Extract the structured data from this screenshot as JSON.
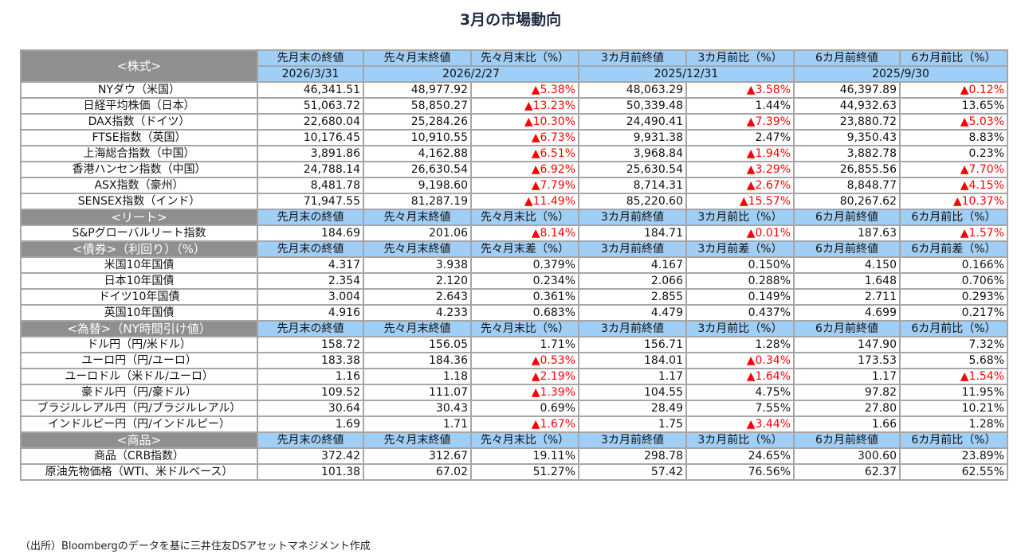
{
  "title": "3月の市場動向",
  "stocks": {
    "label": "<株式>",
    "headers": [
      "先月末の終値",
      "先々月末終値",
      "先々月末比（%）",
      "3カ月前終値",
      "3カ月前比（%）",
      "6カ月前終値",
      "6カ月前比（%）"
    ],
    "dates": [
      "2026/3/31",
      "2026/2/27",
      "2025/12/31",
      "2025/9/30"
    ],
    "rows": [
      {
        "name": "NYダウ（米国）",
        "values": [
          "46,341.51",
          "48,977.92",
          "▲5.38%",
          "48,063.29",
          "▲3.58%",
          "46,397.89",
          "▲0.12%"
        ]
      },
      {
        "name": "日経平均株価（日本）",
        "values": [
          "51,063.72",
          "58,850.27",
          "▲13.23%",
          "50,339.48",
          "1.44%",
          "44,932.63",
          "13.65%"
        ]
      },
      {
        "name": "DAX指数（ドイツ）",
        "values": [
          "22,680.04",
          "25,284.26",
          "▲10.30%",
          "24,490.41",
          "▲7.39%",
          "23,880.72",
          "▲5.03%"
        ]
      },
      {
        "name": "FTSE指数（英国）",
        "values": [
          "10,176.45",
          "10,910.55",
          "▲6.73%",
          "9,931.38",
          "2.47%",
          "9,350.43",
          "8.83%"
        ]
      },
      {
        "name": "上海総合指数（中国）",
        "values": [
          "3,891.86",
          "4,162.88",
          "▲6.51%",
          "3,968.84",
          "▲1.94%",
          "3,882.78",
          "0.23%"
        ]
      },
      {
        "name": "香港ハンセン指数（中国）",
        "values": [
          "24,788.14",
          "26,630.54",
          "▲6.92%",
          "25,630.54",
          "▲3.29%",
          "26,855.56",
          "▲7.70%"
        ]
      },
      {
        "name": "ASX指数（豪州）",
        "values": [
          "8,481.78",
          "9,198.60",
          "▲7.79%",
          "8,714.31",
          "▲2.67%",
          "8,848.77",
          "▲4.15%"
        ]
      },
      {
        "name": "SENSEX指数（インド）",
        "values": [
          "71,947.55",
          "81,287.19",
          "▲11.49%",
          "85,220.60",
          "▲15.57%",
          "80,267.62",
          "▲10.37%"
        ]
      }
    ]
  },
  "sections": [
    {
      "label": "<リート>",
      "headers": [
        "先月末の終値",
        "先々月末終値",
        "先々月末比（%）",
        "3カ月前終値",
        "3カ月前比（%）",
        "6カ月前終値",
        "6カ月前比（%）"
      ],
      "rows": [
        {
          "name": "S&Pグローバルリート指数",
          "values": [
            "184.69",
            "201.06",
            "▲8.14%",
            "184.71",
            "▲0.01%",
            "187.63",
            "▲1.57%"
          ]
        }
      ]
    },
    {
      "label": "<債券>（利回り）（%）",
      "headers": [
        "先月末の終値",
        "先々月末終値",
        "先々月末差（%）",
        "3カ月前終値",
        "3カ月前差（%）",
        "6カ月前終値",
        "6カ月前差（%）"
      ],
      "rows": [
        {
          "name": "米国10年国債",
          "values": [
            "4.317",
            "3.938",
            "0.379%",
            "4.167",
            "0.150%",
            "4.150",
            "0.166%"
          ]
        },
        {
          "name": "日本10年国債",
          "values": [
            "2.354",
            "2.120",
            "0.234%",
            "2.066",
            "0.288%",
            "1.648",
            "0.706%"
          ]
        },
        {
          "name": "ドイツ10年国債",
          "values": [
            "3.004",
            "2.643",
            "0.361%",
            "2.855",
            "0.149%",
            "2.711",
            "0.293%"
          ]
        },
        {
          "name": "英国10年国債",
          "values": [
            "4.916",
            "4.233",
            "0.683%",
            "4.479",
            "0.437%",
            "4.699",
            "0.217%"
          ]
        }
      ]
    },
    {
      "label": "<為替>（NY時間引け値）",
      "headers": [
        "先月末の終値",
        "先々月末終値",
        "先々月末比（%）",
        "3カ月前終値",
        "3カ月前比（%）",
        "6カ月前終値",
        "6カ月前比（%）"
      ],
      "rows": [
        {
          "name": "ドル円（円/米ドル）",
          "values": [
            "158.72",
            "156.05",
            "1.71%",
            "156.71",
            "1.28%",
            "147.90",
            "7.32%"
          ]
        },
        {
          "name": "ユーロ円（円/ユーロ）",
          "values": [
            "183.38",
            "184.36",
            "▲0.53%",
            "184.01",
            "▲0.34%",
            "173.53",
            "5.68%"
          ]
        },
        {
          "name": "ユーロドル（米ドル/ユーロ）",
          "values": [
            "1.16",
            "1.18",
            "▲2.19%",
            "1.17",
            "▲1.64%",
            "1.17",
            "▲1.54%"
          ]
        },
        {
          "name": "豪ドル円（円/豪ドル）",
          "values": [
            "109.52",
            "111.07",
            "▲1.39%",
            "104.55",
            "4.75%",
            "97.82",
            "11.95%"
          ]
        },
        {
          "name": "ブラジルレアル円（円/ブラジルレアル）",
          "values": [
            "30.64",
            "30.43",
            "0.69%",
            "28.49",
            "7.55%",
            "27.80",
            "10.21%"
          ]
        },
        {
          "name": "インドルピー円（円/インドルピー）",
          "values": [
            "1.69",
            "1.71",
            "▲1.67%",
            "1.75",
            "▲3.44%",
            "1.66",
            "1.28%"
          ]
        }
      ]
    },
    {
      "label": "<商品>",
      "headers": [
        "先月末の終値",
        "先々月末終値",
        "先々月末比（%）",
        "3カ月前終値",
        "3カ月前比（%）",
        "6カ月前終値",
        "6カ月前比（%）"
      ],
      "rows": [
        {
          "name": "商品（CRB指数）",
          "values": [
            "372.42",
            "312.67",
            "19.11%",
            "298.78",
            "24.65%",
            "300.60",
            "23.89%"
          ]
        },
        {
          "name": "原油先物価格（WTI、米ドルベース）",
          "values": [
            "101.38",
            "67.02",
            "51.27%",
            "57.42",
            "76.56%",
            "62.37",
            "62.55%"
          ]
        }
      ]
    }
  ],
  "footnote": "（出所）Bloombergのデータを基に三井住友DSアセットマネジメント作成",
  "colors": {
    "negative": "#ff0000",
    "section": "#8f8f8f",
    "header": "#9fcef6"
  }
}
